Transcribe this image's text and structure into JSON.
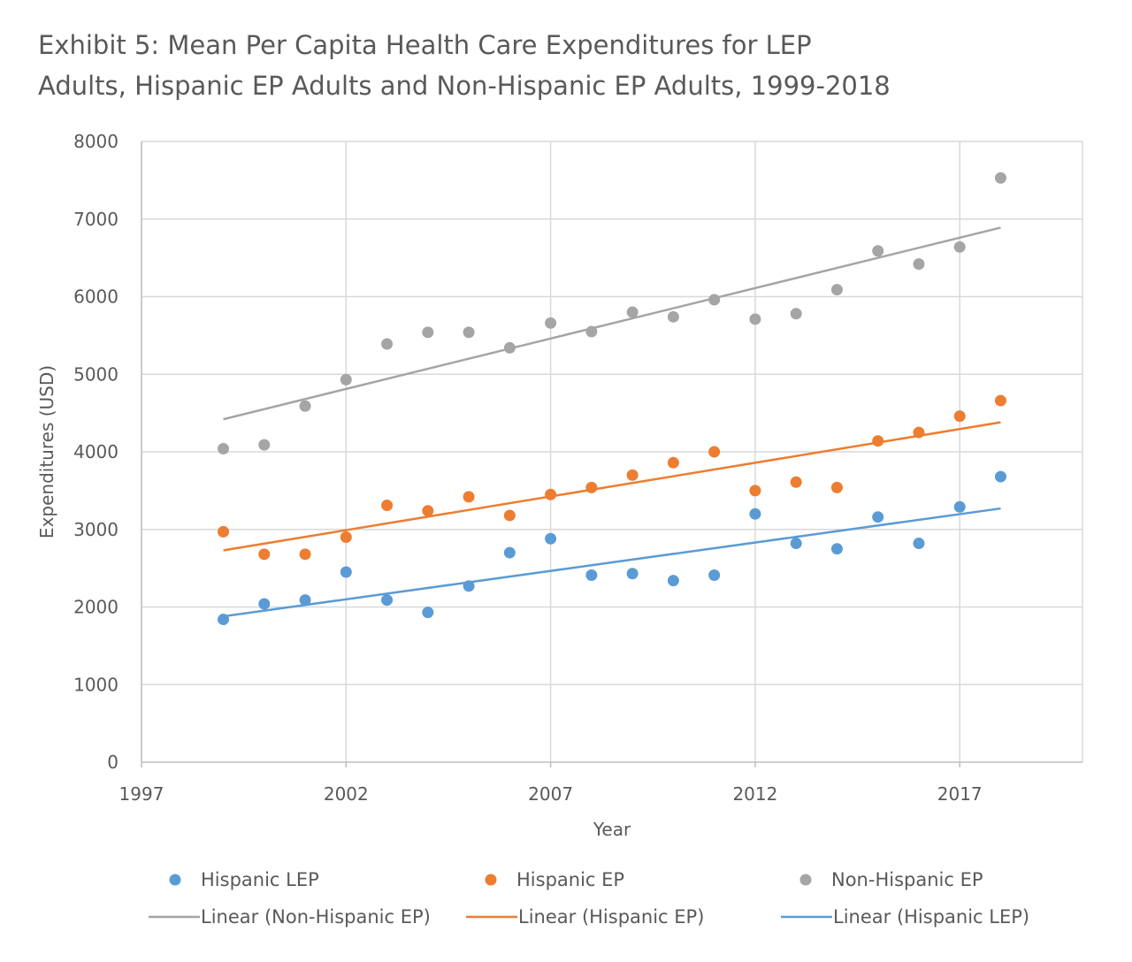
{
  "chart_data": {
    "type": "scatter",
    "title_line1": "Exhibit 5: Mean Per Capita Health Care Expenditures for LEP",
    "title_line2": "Adults, Hispanic EP Adults and Non-Hispanic EP Adults, 1999-2018",
    "xlabel": "Year",
    "ylabel": "Expenditures (USD)",
    "xlim": [
      1997,
      2020
    ],
    "ylim": [
      0,
      8000
    ],
    "x_ticks": [
      1997,
      2002,
      2007,
      2012,
      2017
    ],
    "y_ticks": [
      0,
      1000,
      2000,
      3000,
      4000,
      5000,
      6000,
      7000,
      8000
    ],
    "grid": true,
    "legend_position": "bottom",
    "series": [
      {
        "name": "Hispanic LEP",
        "color": "#5B9BD5",
        "x": [
          1999,
          2000,
          2001,
          2002,
          2003,
          2004,
          2005,
          2006,
          2007,
          2008,
          2009,
          2010,
          2011,
          2012,
          2013,
          2014,
          2015,
          2016,
          2017,
          2018
        ],
        "y": [
          1840,
          2040,
          2090,
          2450,
          2090,
          1930,
          2270,
          2700,
          2880,
          2410,
          2430,
          2340,
          2410,
          3200,
          2820,
          2750,
          3160,
          2820,
          3290,
          3680
        ]
      },
      {
        "name": "Hispanic EP",
        "color": "#ED7D31",
        "x": [
          1999,
          2000,
          2001,
          2002,
          2003,
          2004,
          2005,
          2006,
          2007,
          2008,
          2009,
          2010,
          2011,
          2012,
          2013,
          2014,
          2015,
          2016,
          2017,
          2018
        ],
        "y": [
          2970,
          2680,
          2680,
          2900,
          3310,
          3240,
          3420,
          3180,
          3450,
          3540,
          3700,
          3860,
          4000,
          3500,
          3610,
          3540,
          4140,
          4250,
          4460,
          4660
        ]
      },
      {
        "name": "Non-Hispanic EP",
        "color": "#A5A5A5",
        "x": [
          1999,
          2000,
          2001,
          2002,
          2003,
          2004,
          2005,
          2006,
          2007,
          2008,
          2009,
          2010,
          2011,
          2012,
          2013,
          2014,
          2015,
          2016,
          2017,
          2018
        ],
        "y": [
          4040,
          4090,
          4590,
          4930,
          5390,
          5540,
          5540,
          5340,
          5660,
          5550,
          5800,
          5740,
          5960,
          5710,
          5780,
          6090,
          6590,
          6420,
          6640,
          7530
        ]
      }
    ],
    "trendlines": [
      {
        "name": "Linear (Non-Hispanic EP)",
        "of": "Non-Hispanic EP",
        "color": "#A5A5A5",
        "x": [
          1999,
          2018
        ],
        "y": [
          4420,
          6890
        ]
      },
      {
        "name": "Linear (Hispanic EP)",
        "of": "Hispanic EP",
        "color": "#ED7D31",
        "x": [
          1999,
          2018
        ],
        "y": [
          2730,
          4380
        ]
      },
      {
        "name": "Linear (Hispanic LEP)",
        "of": "Hispanic LEP",
        "color": "#5B9BD5",
        "x": [
          1999,
          2018
        ],
        "y": [
          1880,
          3270
        ]
      }
    ]
  }
}
